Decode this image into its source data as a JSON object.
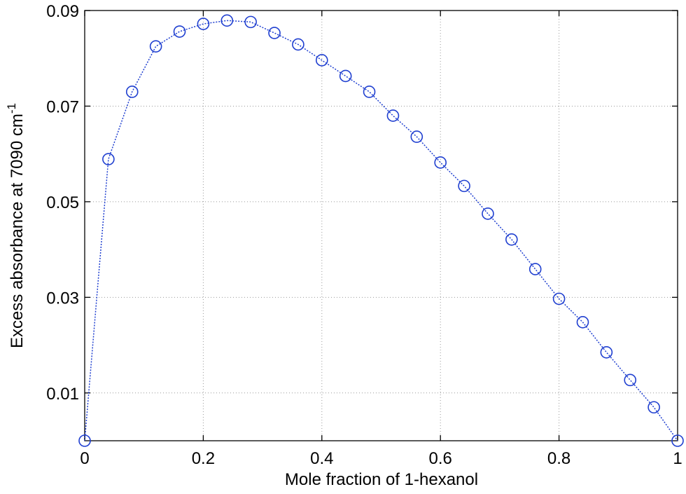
{
  "chart_data": {
    "type": "line",
    "xlabel": "Mole fraction of 1-hexanol",
    "ylabel": "Excess absorbance at 7090 cm",
    "ylabel_superscript": "-1",
    "x": [
      0,
      0.04,
      0.08,
      0.12,
      0.16,
      0.2,
      0.24,
      0.28,
      0.32,
      0.36,
      0.4,
      0.44,
      0.48,
      0.52,
      0.56,
      0.6,
      0.64,
      0.68,
      0.72,
      0.76,
      0.8,
      0.84,
      0.88,
      0.92,
      0.96,
      1
    ],
    "series": [
      {
        "color": "#1f3fd0",
        "values": [
          0,
          0.0589,
          0.073,
          0.0825,
          0.0856,
          0.0872,
          0.0879,
          0.0876,
          0.0853,
          0.0829,
          0.0796,
          0.0763,
          0.073,
          0.068,
          0.0636,
          0.0582,
          0.0533,
          0.0475,
          0.0421,
          0.0359,
          0.0297,
          0.0248,
          0.0185,
          0.0127,
          0.007,
          0
        ]
      }
    ],
    "xlim": [
      0,
      1
    ],
    "xticks": [
      0,
      0.2,
      0.4,
      0.6,
      0.8,
      1
    ],
    "ylim": [
      0,
      0.09
    ],
    "yticks": [
      0.01,
      0.03,
      0.05,
      0.07,
      0.09
    ],
    "grid": true
  }
}
